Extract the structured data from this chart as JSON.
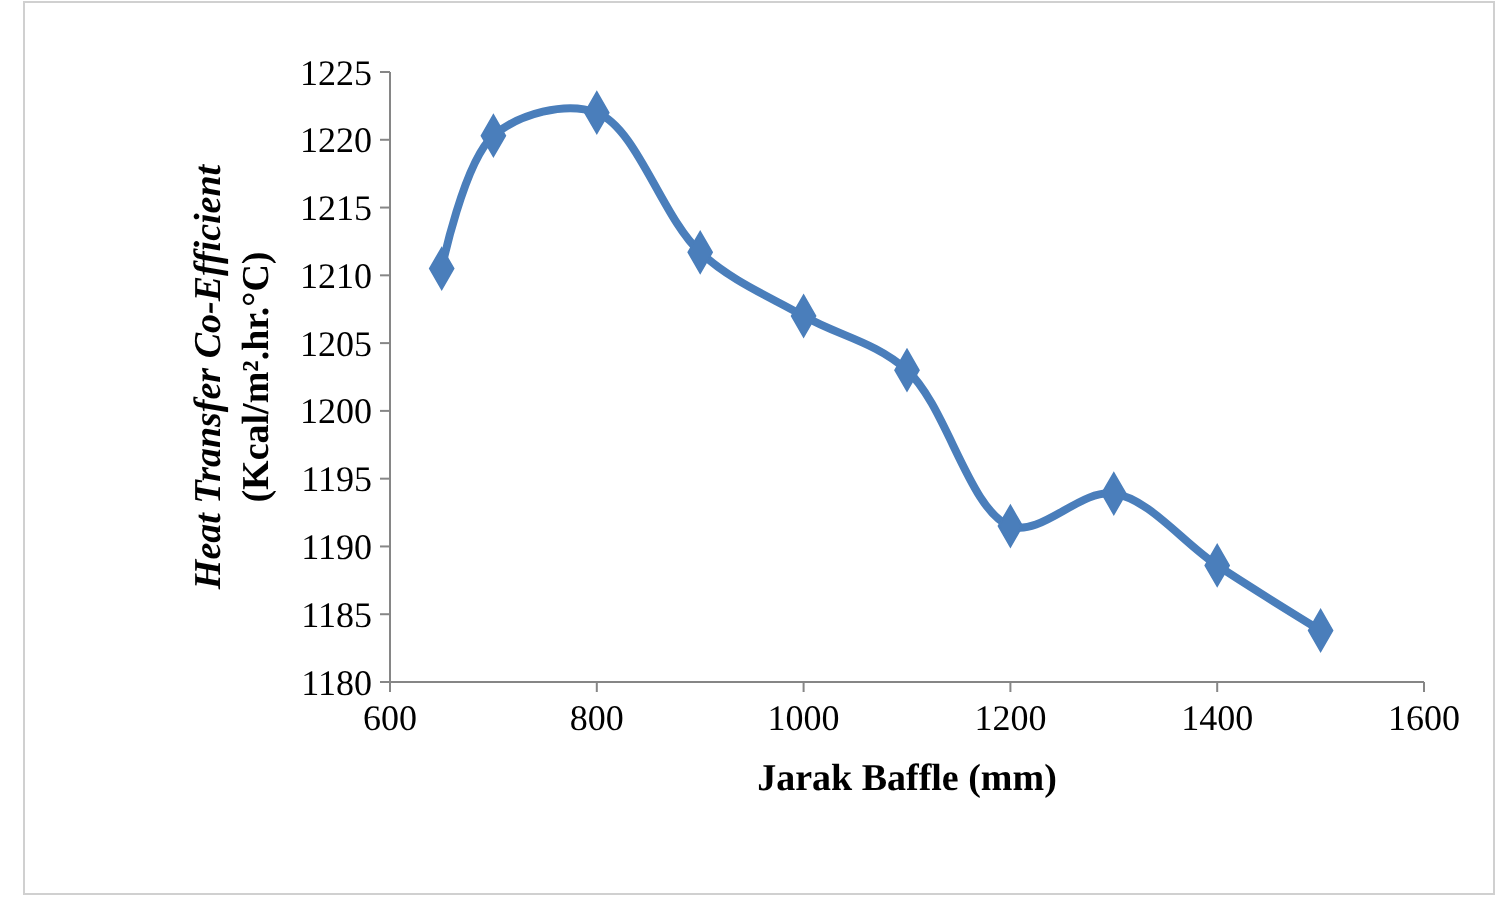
{
  "chart_data": {
    "type": "line",
    "xlabel": "Jarak Baffle (mm)",
    "ylabel": "Heat Transfer Co-Efficient\n(Kcal/m².hr.°C)",
    "x": [
      650,
      700,
      800,
      900,
      1000,
      1100,
      1200,
      1300,
      1400,
      1500
    ],
    "series": [
      {
        "color": "#4a7ebb",
        "values": [
          1210.5,
          1220.3,
          1222,
          1211.7,
          1207,
          1203,
          1191.5,
          1193.9,
          1188.6,
          1183.8
        ]
      }
    ],
    "xlim": [
      600,
      1600
    ],
    "xticks": [
      600,
      800,
      1000,
      1200,
      1400,
      1600
    ],
    "ylim": [
      1180,
      1225
    ],
    "yticks": [
      1180,
      1185,
      1190,
      1195,
      1200,
      1205,
      1210,
      1215,
      1220,
      1225
    ],
    "marker": "diamond",
    "line_style": "solid",
    "grid": false
  }
}
